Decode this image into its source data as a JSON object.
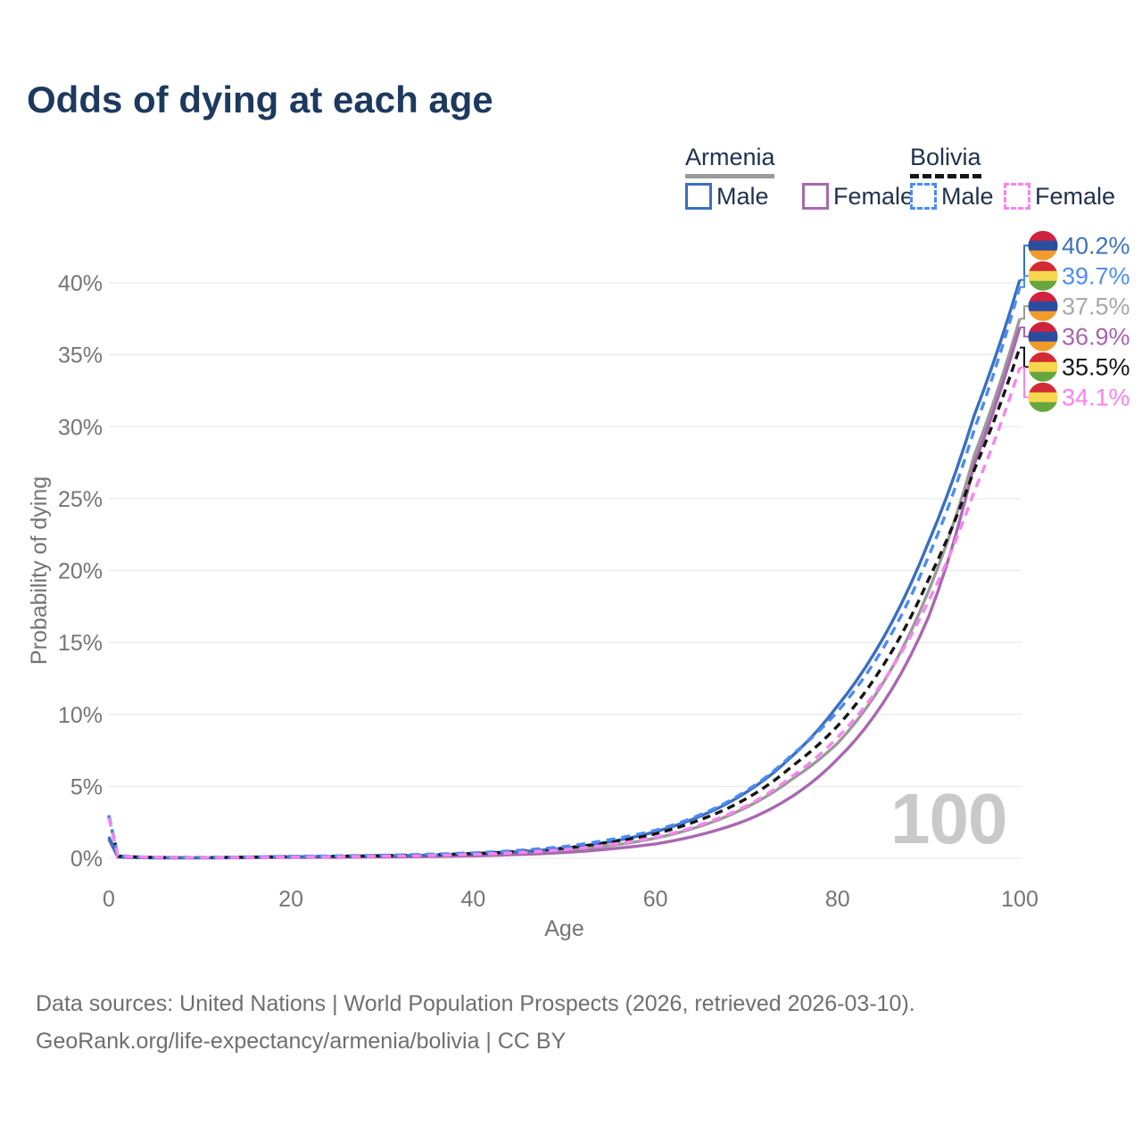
{
  "header": {
    "title": "Odds of dying at each age"
  },
  "legend": {
    "groups": [
      {
        "country": "Armenia",
        "line_style": "solid",
        "underline_color": "#9a9a9a",
        "items": [
          {
            "label": "Male",
            "color": "#3a6fc0",
            "dashed": false
          },
          {
            "label": "Female",
            "color": "#a868b0",
            "dashed": false
          }
        ]
      },
      {
        "country": "Bolivia",
        "line_style": "dashed",
        "underline_color": "#151515",
        "items": [
          {
            "label": "Male",
            "color": "#4b8bf4",
            "dashed": true
          },
          {
            "label": "Female",
            "color": "#f884ef",
            "dashed": true
          }
        ]
      }
    ]
  },
  "chart_data": {
    "type": "line",
    "title": "Odds of dying at each age",
    "xlabel": "Age",
    "ylabel": "Probability of dying",
    "xlim": [
      0,
      100
    ],
    "ylim": [
      0,
      40
    ],
    "x_ticks": [
      0,
      20,
      40,
      60,
      80,
      100
    ],
    "y_ticks": [
      {
        "value": 0,
        "label": "0%"
      },
      {
        "value": 5,
        "label": "5%"
      },
      {
        "value": 10,
        "label": "10%"
      },
      {
        "value": 15,
        "label": "15%"
      },
      {
        "value": 20,
        "label": "20%"
      },
      {
        "value": 25,
        "label": "25%"
      },
      {
        "value": 30,
        "label": "30%"
      },
      {
        "value": 35,
        "label": "35%"
      },
      {
        "value": 40,
        "label": "40%"
      }
    ],
    "grid": "horizontal",
    "grid_color": "#e9e9e9",
    "axis_text_color": "#757575",
    "watermark": "100",
    "watermark_color": "#c9c9c9",
    "ages": [
      0,
      1,
      5,
      10,
      15,
      20,
      25,
      30,
      35,
      40,
      45,
      50,
      55,
      60,
      65,
      70,
      75,
      80,
      85,
      90,
      95,
      100
    ],
    "series": [
      {
        "id": "armenia-both",
        "name": "Armenia",
        "country": "Armenia",
        "sex": "Both",
        "color": "#9a9a9a",
        "dash": null,
        "flag": "armenia",
        "end_value": 37.5,
        "end_label": "37.5%",
        "label_color": "#a8a8a8",
        "values": [
          1.4,
          0.09,
          0.04,
          0.03,
          0.05,
          0.08,
          0.1,
          0.13,
          0.17,
          0.24,
          0.36,
          0.55,
          0.88,
          1.4,
          2.25,
          3.55,
          5.5,
          8.0,
          12.2,
          18.6,
          28.0,
          37.5
        ]
      },
      {
        "id": "armenia-female",
        "name": "Armenia Female",
        "country": "Armenia",
        "sex": "Female",
        "color": "#a868b0",
        "dash": null,
        "flag": "armenia",
        "end_value": 36.9,
        "end_label": "36.9%",
        "label_color": "#ad62ad",
        "values": [
          1.3,
          0.08,
          0.03,
          0.03,
          0.04,
          0.06,
          0.07,
          0.09,
          0.12,
          0.17,
          0.26,
          0.4,
          0.65,
          1.0,
          1.65,
          2.65,
          4.3,
          6.9,
          10.8,
          16.8,
          27.4,
          36.9
        ]
      },
      {
        "id": "armenia-male",
        "name": "Armenia Male",
        "country": "Armenia",
        "sex": "Male",
        "color": "#3a6fc0",
        "dash": null,
        "flag": "armenia",
        "end_value": 40.2,
        "end_label": "40.2%",
        "label_color": "#3d72bf",
        "values": [
          1.5,
          0.1,
          0.04,
          0.04,
          0.07,
          0.11,
          0.13,
          0.16,
          0.22,
          0.31,
          0.46,
          0.7,
          1.15,
          1.85,
          2.95,
          4.6,
          7.1,
          10.6,
          15.3,
          22.0,
          30.8,
          40.2
        ]
      },
      {
        "id": "bolivia-both",
        "name": "Bolivia",
        "country": "Bolivia",
        "sex": "Both",
        "color": "#151515",
        "dash": "9 6",
        "flag": "bolivia",
        "end_value": 35.5,
        "end_label": "35.5%",
        "label_color": "#151515",
        "values": [
          2.9,
          0.16,
          0.06,
          0.05,
          0.08,
          0.12,
          0.14,
          0.18,
          0.24,
          0.33,
          0.47,
          0.71,
          1.12,
          1.7,
          2.7,
          4.15,
          6.4,
          9.2,
          13.4,
          19.4,
          27.0,
          35.5
        ]
      },
      {
        "id": "bolivia-male",
        "name": "Bolivia Male",
        "country": "Bolivia",
        "sex": "Male",
        "color": "#4b8bf4",
        "dash": "10 7",
        "flag": "bolivia",
        "end_value": 39.7,
        "end_label": "39.7%",
        "label_color": "#4f8df2",
        "values": [
          3.0,
          0.18,
          0.07,
          0.06,
          0.09,
          0.14,
          0.17,
          0.21,
          0.28,
          0.38,
          0.55,
          0.82,
          1.3,
          1.95,
          3.05,
          4.7,
          7.2,
          10.2,
          14.6,
          21.0,
          29.8,
          39.7
        ]
      },
      {
        "id": "bolivia-female",
        "name": "Bolivia Female",
        "country": "Bolivia",
        "sex": "Female",
        "color": "#f884ef",
        "dash": "10 7",
        "flag": "bolivia",
        "end_value": 34.1,
        "end_label": "34.1%",
        "label_color": "#fb80f0",
        "values": [
          2.8,
          0.15,
          0.06,
          0.05,
          0.06,
          0.09,
          0.11,
          0.14,
          0.19,
          0.27,
          0.39,
          0.6,
          0.95,
          1.45,
          2.35,
          3.65,
          5.7,
          8.4,
          12.3,
          17.9,
          25.5,
          34.1
        ]
      }
    ],
    "flags": {
      "armenia": [
        "#d0213f",
        "#2b4da0",
        "#f29b2b"
      ],
      "bolivia": [
        "#d22b35",
        "#f7d74e",
        "#66a63e"
      ]
    }
  },
  "footer": {
    "line1": "Data sources: United Nations | World Population Prospects (2026, retrieved 2026-03-10).",
    "line2": "GeoRank.org/life-expectancy/armenia/bolivia | CC BY"
  }
}
